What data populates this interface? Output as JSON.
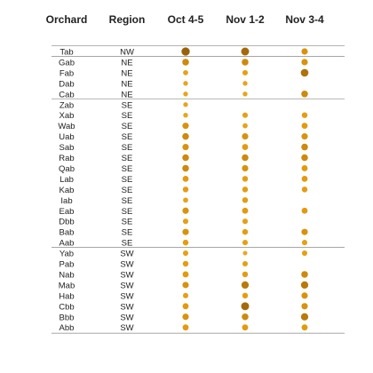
{
  "chart_data": {
    "type": "dot-table",
    "columns": [
      "Orchard",
      "Region",
      "Oct 4-5",
      "Nov 1-2",
      "Nov 3-4"
    ],
    "groups": [
      "NW",
      "NE",
      "SE",
      "SW"
    ],
    "value_range": [
      0,
      1
    ],
    "encoding": "dot size and color intensity = value (small/light orange = low, large/dark brown = high)",
    "rows": [
      {
        "orchard": "Tab",
        "region": "NW",
        "values": [
          0.85,
          0.8,
          0.55
        ]
      },
      {
        "orchard": "Gab",
        "region": "NE",
        "values": [
          0.6,
          0.6,
          0.55
        ]
      },
      {
        "orchard": "Fab",
        "region": "NE",
        "values": [
          0.35,
          0.4,
          0.75
        ]
      },
      {
        "orchard": "Dab",
        "region": "NE",
        "values": [
          0.3,
          0.3,
          null
        ]
      },
      {
        "orchard": "Cab",
        "region": "NE",
        "values": [
          0.3,
          0.3,
          0.6
        ]
      },
      {
        "orchard": "Zab",
        "region": "SE",
        "values": [
          0.3,
          null,
          null
        ]
      },
      {
        "orchard": "Xab",
        "region": "SE",
        "values": [
          0.3,
          0.4,
          0.45
        ]
      },
      {
        "orchard": "Wab",
        "region": "SE",
        "values": [
          0.55,
          0.35,
          0.5
        ]
      },
      {
        "orchard": "Uab",
        "region": "SE",
        "values": [
          0.6,
          0.55,
          0.55
        ]
      },
      {
        "orchard": "Sab",
        "region": "SE",
        "values": [
          0.55,
          0.5,
          0.6
        ]
      },
      {
        "orchard": "Rab",
        "region": "SE",
        "values": [
          0.6,
          0.6,
          0.6
        ]
      },
      {
        "orchard": "Qab",
        "region": "SE",
        "values": [
          0.6,
          0.55,
          0.5
        ]
      },
      {
        "orchard": "Lab",
        "region": "SE",
        "values": [
          0.5,
          0.45,
          0.5
        ]
      },
      {
        "orchard": "Kab",
        "region": "SE",
        "values": [
          0.45,
          0.45,
          0.45
        ]
      },
      {
        "orchard": "Iab",
        "region": "SE",
        "values": [
          0.35,
          0.45,
          null
        ]
      },
      {
        "orchard": "Eab",
        "region": "SE",
        "values": [
          0.55,
          0.5,
          0.5
        ]
      },
      {
        "orchard": "Dbb",
        "region": "SE",
        "values": [
          0.4,
          0.4,
          null
        ]
      },
      {
        "orchard": "Bab",
        "region": "SE",
        "values": [
          0.55,
          0.45,
          0.55
        ]
      },
      {
        "orchard": "Aab",
        "region": "SE",
        "values": [
          0.45,
          0.4,
          0.4
        ]
      },
      {
        "orchard": "Yab",
        "region": "SW",
        "values": [
          0.4,
          0.25,
          0.4
        ]
      },
      {
        "orchard": "Pab",
        "region": "SW",
        "values": [
          0.45,
          0.4,
          null
        ]
      },
      {
        "orchard": "Nab",
        "region": "SW",
        "values": [
          0.5,
          0.45,
          0.6
        ]
      },
      {
        "orchard": "Mab",
        "region": "SW",
        "values": [
          0.55,
          0.7,
          0.7
        ]
      },
      {
        "orchard": "Hab",
        "region": "SW",
        "values": [
          0.4,
          0.45,
          0.55
        ]
      },
      {
        "orchard": "Cbb",
        "region": "SW",
        "values": [
          0.5,
          0.8,
          0.55
        ]
      },
      {
        "orchard": "Bbb",
        "region": "SW",
        "values": [
          0.55,
          0.6,
          0.7
        ]
      },
      {
        "orchard": "Abb",
        "region": "SW",
        "values": [
          0.5,
          0.5,
          0.5
        ]
      }
    ]
  },
  "colors": {
    "low": "#F2B632",
    "mid": "#E29A0E",
    "high": "#7A4A08",
    "text": "#222222",
    "rule": "#9a9a9a"
  }
}
